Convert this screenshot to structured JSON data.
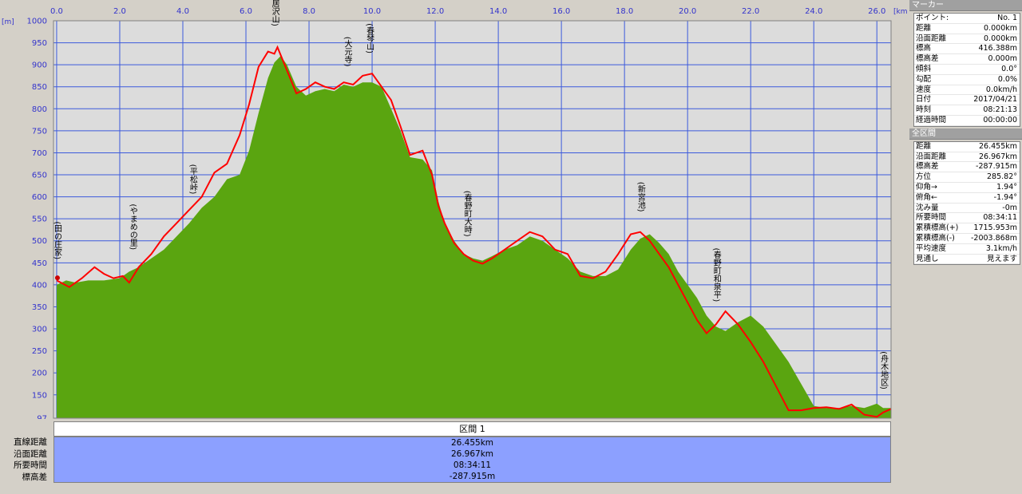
{
  "chart_data": {
    "type": "area",
    "x_unit": "[km]",
    "y_unit": "[m]",
    "xlim": [
      -0.1,
      26.45
    ],
    "ylim": [
      97,
      1000
    ],
    "x_ticks": [
      "0.0",
      "2.0",
      "4.0",
      "6.0",
      "8.0",
      "10.0",
      "12.0",
      "14.0",
      "16.0",
      "18.0",
      "20.0",
      "22.0",
      "24.0",
      "26.0"
    ],
    "y_ticks": [
      "1000",
      "950",
      "900",
      "850",
      "800",
      "750",
      "700",
      "650",
      "600",
      "550",
      "500",
      "450",
      "400",
      "350",
      "300",
      "250",
      "200",
      "150",
      "97"
    ],
    "grid": true,
    "series": [
      {
        "kind": "area",
        "color": "#5aa510",
        "x": [
          0,
          0.3,
          0.6,
          1.0,
          1.5,
          2.0,
          2.3,
          2.6,
          3.0,
          3.4,
          3.8,
          4.2,
          4.6,
          5.0,
          5.4,
          5.8,
          6.1,
          6.4,
          6.7,
          6.9,
          7.1,
          7.3,
          7.6,
          7.9,
          8.2,
          8.5,
          8.8,
          9.1,
          9.4,
          9.7,
          10.0,
          10.3,
          10.6,
          10.9,
          11.2,
          11.6,
          11.9,
          12.1,
          12.3,
          12.6,
          12.9,
          13.2,
          13.5,
          13.8,
          14.2,
          14.6,
          15.0,
          15.4,
          15.8,
          16.2,
          16.6,
          17.0,
          17.4,
          17.8,
          18.2,
          18.5,
          18.8,
          19.1,
          19.4,
          19.7,
          20.0,
          20.3,
          20.6,
          20.9,
          21.2,
          21.6,
          22.0,
          22.4,
          22.8,
          23.2,
          23.6,
          24.0,
          24.4,
          24.8,
          25.2,
          25.6,
          26.0,
          26.2,
          26.45
        ],
        "y": [
          400,
          410,
          405,
          410,
          410,
          415,
          430,
          440,
          460,
          480,
          510,
          540,
          575,
          600,
          640,
          650,
          705,
          790,
          870,
          905,
          920,
          900,
          850,
          830,
          840,
          845,
          840,
          855,
          850,
          860,
          860,
          850,
          800,
          750,
          690,
          685,
          660,
          590,
          540,
          500,
          470,
          460,
          455,
          465,
          480,
          490,
          510,
          500,
          480,
          460,
          430,
          420,
          420,
          435,
          480,
          505,
          515,
          495,
          470,
          430,
          400,
          370,
          330,
          305,
          295,
          315,
          330,
          305,
          265,
          225,
          175,
          125,
          120,
          120,
          125,
          120,
          130,
          120,
          120
        ]
      },
      {
        "kind": "line",
        "color": "#ff0000",
        "x": [
          0,
          0.4,
          0.8,
          1.2,
          1.5,
          1.8,
          2.1,
          2.3,
          2.6,
          3.0,
          3.4,
          3.8,
          4.2,
          4.6,
          5.0,
          5.4,
          5.8,
          6.1,
          6.4,
          6.7,
          6.9,
          7.0,
          7.2,
          7.4,
          7.6,
          7.9,
          8.2,
          8.5,
          8.8,
          9.1,
          9.4,
          9.7,
          10.0,
          10.3,
          10.6,
          10.9,
          11.2,
          11.6,
          11.9,
          12.1,
          12.3,
          12.6,
          12.9,
          13.2,
          13.5,
          13.8,
          14.2,
          14.6,
          15.0,
          15.4,
          15.8,
          16.2,
          16.6,
          17.0,
          17.4,
          17.8,
          18.2,
          18.5,
          18.8,
          19.1,
          19.4,
          19.7,
          20.0,
          20.3,
          20.6,
          20.9,
          21.2,
          21.6,
          22.0,
          22.4,
          22.8,
          23.2,
          23.6,
          24.0,
          24.4,
          24.8,
          25.2,
          25.6,
          26.0,
          26.2,
          26.45
        ],
        "y": [
          410,
          395,
          415,
          440,
          425,
          415,
          420,
          405,
          440,
          470,
          510,
          540,
          570,
          600,
          655,
          675,
          740,
          810,
          895,
          930,
          925,
          940,
          905,
          870,
          835,
          845,
          860,
          850,
          845,
          860,
          855,
          875,
          880,
          850,
          820,
          760,
          695,
          705,
          650,
          580,
          540,
          495,
          470,
          455,
          448,
          460,
          480,
          500,
          520,
          510,
          480,
          470,
          420,
          415,
          430,
          470,
          515,
          520,
          500,
          470,
          440,
          400,
          360,
          320,
          290,
          310,
          340,
          310,
          270,
          225,
          170,
          115,
          115,
          120,
          122,
          118,
          128,
          105,
          100,
          110,
          118
        ]
      }
    ],
    "markers": [
      {
        "x": 0.0,
        "y": 410,
        "label": "(田の庄家)"
      },
      {
        "x": 2.4,
        "y": 430,
        "label": "(やまめの里)"
      },
      {
        "x": 4.3,
        "y": 560,
        "label": "(平松峠)"
      },
      {
        "x": 6.9,
        "y": 940,
        "label": "(鳥居沢山)"
      },
      {
        "x": 9.2,
        "y": 850,
        "label": "(大元寺)"
      },
      {
        "x": 9.9,
        "y": 880,
        "label": "(春琴山)"
      },
      {
        "x": 13.0,
        "y": 460,
        "label": "(春野町大時)"
      },
      {
        "x": 18.5,
        "y": 520,
        "label": "(新宮池)"
      },
      {
        "x": 20.9,
        "y": 310,
        "label": "(春野町和泉平)"
      },
      {
        "x": 26.2,
        "y": 115,
        "label": "(舟木地区)"
      }
    ],
    "start_point": {
      "x": 0.0,
      "y": 416
    }
  },
  "segment": {
    "header": "区間 1",
    "rows": [
      {
        "label": "直線距離",
        "value": "26.455km"
      },
      {
        "label": "沿面距離",
        "value": "26.967km"
      },
      {
        "label": "所要時間",
        "value": "08:34:11"
      },
      {
        "label": "標高差",
        "value": "-287.915m"
      }
    ]
  },
  "marker_panel": {
    "title": "マーカー",
    "rows": [
      {
        "label": "ポイント:",
        "value": "No. 1"
      },
      {
        "label": "距離",
        "value": "0.000km"
      },
      {
        "label": "沿面距離",
        "value": "0.000km"
      },
      {
        "label": "標高",
        "value": "416.388m"
      },
      {
        "label": "標高差",
        "value": "0.000m"
      },
      {
        "label": "傾斜",
        "value": "0.0°"
      },
      {
        "label": "勾配",
        "value": "0.0%"
      },
      {
        "label": "速度",
        "value": "0.0km/h"
      },
      {
        "label": "日付",
        "value": "2017/04/21"
      },
      {
        "label": "時刻",
        "value": "08:21:13"
      },
      {
        "label": "経過時間",
        "value": "00:00:00"
      }
    ]
  },
  "total_panel": {
    "title": "全区間",
    "rows": [
      {
        "label": "距離",
        "value": "26.455km"
      },
      {
        "label": "沿面距離",
        "value": "26.967km"
      },
      {
        "label": "標高差",
        "value": "-287.915m"
      },
      {
        "label": "方位",
        "value": "285.82°"
      },
      {
        "label": "仰角→",
        "value": "1.94°"
      },
      {
        "label": "俯角←",
        "value": "-1.94°"
      },
      {
        "label": "沈み量",
        "value": "-0m"
      },
      {
        "label": "所要時間",
        "value": "08:34:11"
      },
      {
        "label": "累積標高(+)",
        "value": "1715.953m"
      },
      {
        "label": "累積標高(-)",
        "value": "-2003.868m"
      },
      {
        "label": "平均速度",
        "value": "3.1km/h"
      },
      {
        "label": "見通し",
        "value": "見えます"
      }
    ]
  }
}
